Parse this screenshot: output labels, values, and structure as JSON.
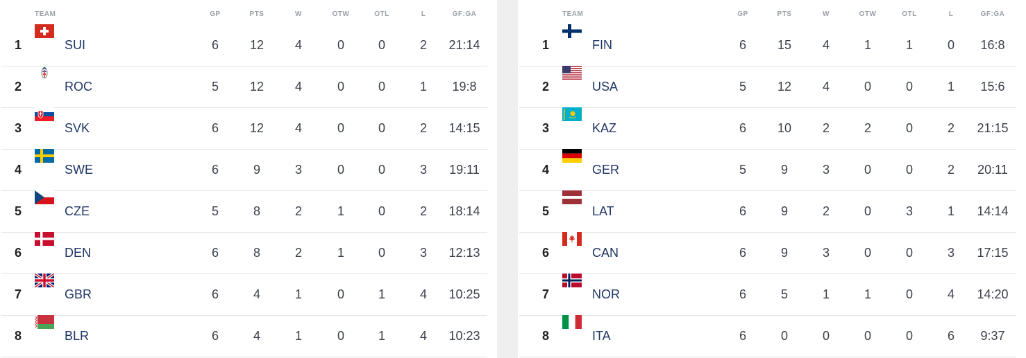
{
  "headers": {
    "team": "TEAM",
    "gp": "GP",
    "pts": "PTS",
    "w": "W",
    "otw": "OTW",
    "otl": "OTL",
    "l": "L",
    "gfga": "GF:GA"
  },
  "left_table": [
    {
      "rank": "1",
      "code": "SUI",
      "gp": "6",
      "pts": "12",
      "w": "4",
      "otw": "0",
      "otl": "0",
      "l": "2",
      "gfga": "21:14",
      "flag": "flag-switzerland"
    },
    {
      "rank": "2",
      "code": "ROC",
      "gp": "5",
      "pts": "12",
      "w": "4",
      "otw": "0",
      "otl": "0",
      "l": "1",
      "gfga": "19:8",
      "flag": "flag-roc-emblem"
    },
    {
      "rank": "3",
      "code": "SVK",
      "gp": "6",
      "pts": "12",
      "w": "4",
      "otw": "0",
      "otl": "0",
      "l": "2",
      "gfga": "14:15",
      "flag": "flag-slovakia"
    },
    {
      "rank": "4",
      "code": "SWE",
      "gp": "6",
      "pts": "9",
      "w": "3",
      "otw": "0",
      "otl": "0",
      "l": "3",
      "gfga": "19:11",
      "flag": "flag-sweden"
    },
    {
      "rank": "5",
      "code": "CZE",
      "gp": "5",
      "pts": "8",
      "w": "2",
      "otw": "1",
      "otl": "0",
      "l": "2",
      "gfga": "18:14",
      "flag": "flag-czechia"
    },
    {
      "rank": "6",
      "code": "DEN",
      "gp": "6",
      "pts": "8",
      "w": "2",
      "otw": "1",
      "otl": "0",
      "l": "3",
      "gfga": "12:13",
      "flag": "flag-denmark"
    },
    {
      "rank": "7",
      "code": "GBR",
      "gp": "6",
      "pts": "4",
      "w": "1",
      "otw": "0",
      "otl": "1",
      "l": "4",
      "gfga": "10:25",
      "flag": "flag-great-britain"
    },
    {
      "rank": "8",
      "code": "BLR",
      "gp": "6",
      "pts": "4",
      "w": "1",
      "otw": "0",
      "otl": "1",
      "l": "4",
      "gfga": "10:23",
      "flag": "flag-belarus"
    }
  ],
  "right_table": [
    {
      "rank": "1",
      "code": "FIN",
      "gp": "6",
      "pts": "15",
      "w": "4",
      "otw": "1",
      "otl": "1",
      "l": "0",
      "gfga": "16:8",
      "flag": "flag-finland"
    },
    {
      "rank": "2",
      "code": "USA",
      "gp": "5",
      "pts": "12",
      "w": "4",
      "otw": "0",
      "otl": "0",
      "l": "1",
      "gfga": "15:6",
      "flag": "flag-usa"
    },
    {
      "rank": "3",
      "code": "KAZ",
      "gp": "6",
      "pts": "10",
      "w": "2",
      "otw": "2",
      "otl": "0",
      "l": "2",
      "gfga": "21:15",
      "flag": "flag-kazakhstan"
    },
    {
      "rank": "4",
      "code": "GER",
      "gp": "5",
      "pts": "9",
      "w": "3",
      "otw": "0",
      "otl": "0",
      "l": "2",
      "gfga": "20:11",
      "flag": "flag-germany"
    },
    {
      "rank": "5",
      "code": "LAT",
      "gp": "6",
      "pts": "9",
      "w": "2",
      "otw": "0",
      "otl": "3",
      "l": "1",
      "gfga": "14:14",
      "flag": "flag-latvia"
    },
    {
      "rank": "6",
      "code": "CAN",
      "gp": "6",
      "pts": "9",
      "w": "3",
      "otw": "0",
      "otl": "0",
      "l": "3",
      "gfga": "17:15",
      "flag": "flag-canada"
    },
    {
      "rank": "7",
      "code": "NOR",
      "gp": "6",
      "pts": "5",
      "w": "1",
      "otw": "1",
      "otl": "0",
      "l": "4",
      "gfga": "14:20",
      "flag": "flag-norway"
    },
    {
      "rank": "8",
      "code": "ITA",
      "gp": "6",
      "pts": "0",
      "w": "0",
      "otw": "0",
      "otl": "0",
      "l": "6",
      "gfga": "9:37",
      "flag": "flag-italy"
    }
  ]
}
